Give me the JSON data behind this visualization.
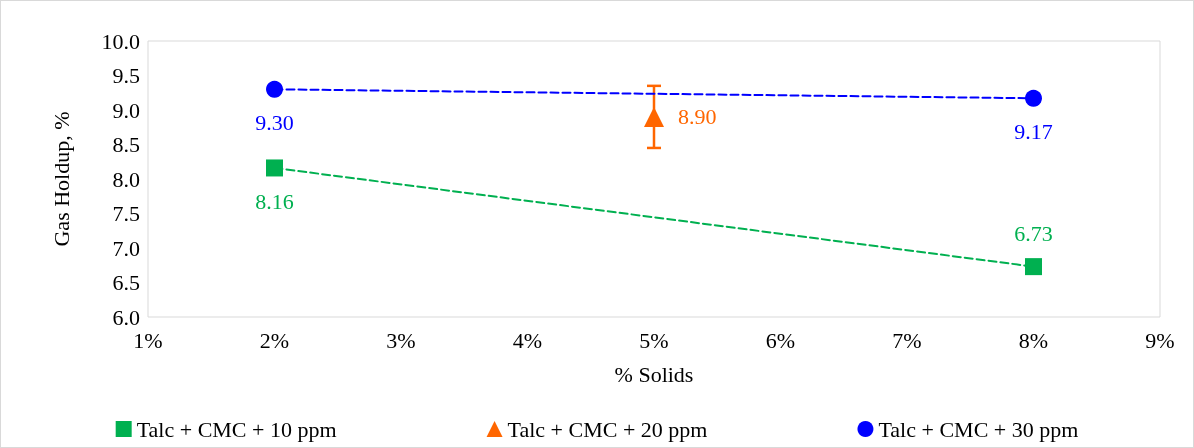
{
  "chart_data": {
    "type": "line",
    "xlabel": "% Solids",
    "ylabel": "Gas Holdup, %",
    "series": [
      {
        "name": "Talc + CMC + 10 ppm",
        "color": "#00b050",
        "x": [
          2,
          8
        ],
        "values": [
          8.16,
          6.73
        ],
        "value_labels": [
          "8.16",
          "6.73"
        ],
        "marker": "square"
      },
      {
        "name": "Talc + CMC + 20 ppm",
        "color": "#ff6600",
        "x": [
          5
        ],
        "values": [
          8.9
        ],
        "errors": [
          0.45
        ],
        "value_labels": [
          "8.90"
        ],
        "marker": "triangle"
      },
      {
        "name": "Talc + CMC + 30 ppm",
        "color": "#0000ff",
        "x": [
          2,
          8
        ],
        "values": [
          9.3,
          9.17
        ],
        "value_labels": [
          "9.30",
          "9.17"
        ],
        "marker": "circle"
      }
    ],
    "xlim": [
      1,
      9
    ],
    "xticks": [
      {
        "value": 1,
        "label": "1%"
      },
      {
        "value": 2,
        "label": "2%"
      },
      {
        "value": 3,
        "label": "3%"
      },
      {
        "value": 4,
        "label": "4%"
      },
      {
        "value": 5,
        "label": "5%"
      },
      {
        "value": 6,
        "label": "6%"
      },
      {
        "value": 7,
        "label": "7%"
      },
      {
        "value": 8,
        "label": "8%"
      },
      {
        "value": 9,
        "label": "9%"
      }
    ],
    "ylim": [
      6,
      10
    ],
    "yticks": [
      {
        "value": 6,
        "label": "6.0"
      },
      {
        "value": 6.5,
        "label": "6.5"
      },
      {
        "value": 7,
        "label": "7.0"
      },
      {
        "value": 7.5,
        "label": "7.5"
      },
      {
        "value": 8,
        "label": "8.0"
      },
      {
        "value": 8.5,
        "label": "8.5"
      },
      {
        "value": 9,
        "label": "9.0"
      },
      {
        "value": 9.5,
        "label": "9.5"
      },
      {
        "value": 10,
        "label": "10.0"
      }
    ],
    "line_style": "dashed",
    "grid": false,
    "legend": "bottom"
  }
}
